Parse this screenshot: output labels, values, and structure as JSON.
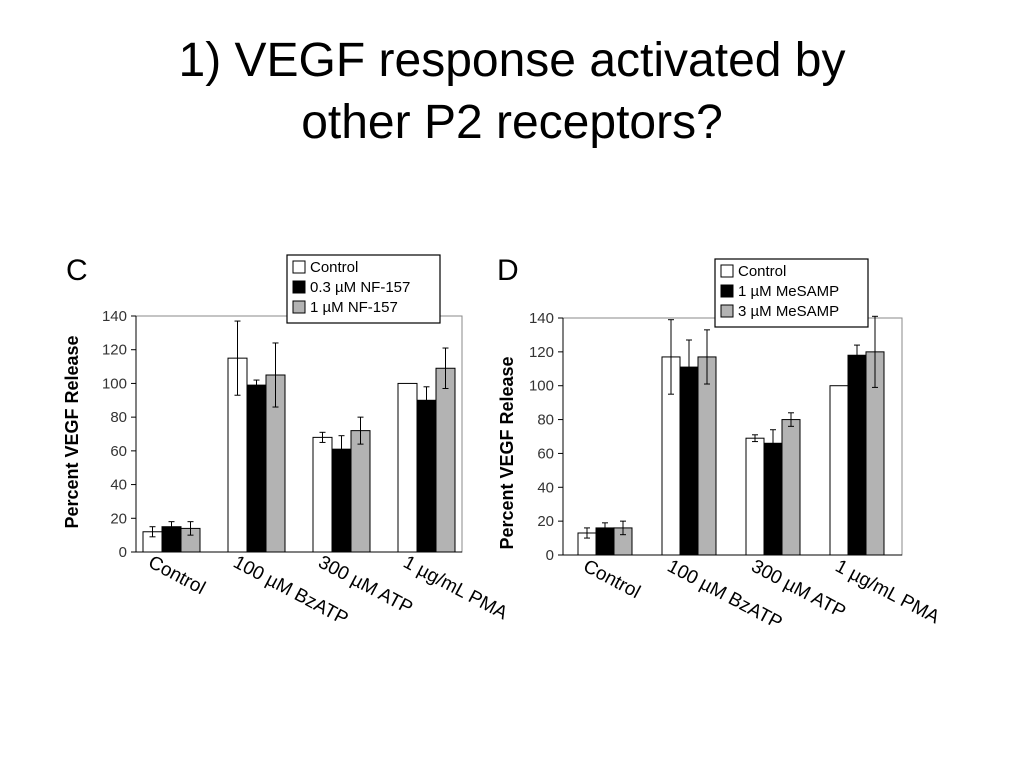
{
  "slide": {
    "title_line1": "1) VEGF response activated by",
    "title_line2": "other P2 receptors?"
  },
  "colors": {
    "control": "#ffffff",
    "dark": "#000000",
    "gray": "#b3b3b3"
  },
  "chart_data": [
    {
      "panel": "C",
      "type": "bar",
      "ylabel": "Percent VEGF Release",
      "ylim": [
        0,
        140
      ],
      "yticks": [
        0,
        20,
        40,
        60,
        80,
        100,
        120,
        140
      ],
      "categories": [
        "Control",
        "100 µM BzATP",
        "300 µM ATP",
        "1 µg/mL PMA"
      ],
      "legend_position": "top-right",
      "series": [
        {
          "name": "Control",
          "color": "#ffffff",
          "values": [
            12,
            115,
            68,
            100
          ],
          "errors": [
            3,
            22,
            3,
            0
          ]
        },
        {
          "name": "0.3 µM NF-157",
          "color": "#000000",
          "values": [
            15,
            99,
            61,
            90
          ],
          "errors": [
            3,
            3,
            8,
            8
          ]
        },
        {
          "name": "1 µM NF-157",
          "color": "#b3b3b3",
          "values": [
            14,
            105,
            72,
            109
          ],
          "errors": [
            4,
            19,
            8,
            12
          ]
        }
      ]
    },
    {
      "panel": "D",
      "type": "bar",
      "ylabel": "Percent VEGF Release",
      "ylim": [
        0,
        140
      ],
      "yticks": [
        0,
        20,
        40,
        60,
        80,
        100,
        120,
        140
      ],
      "categories": [
        "Control",
        "100 µM BzATP",
        "300 µM ATP",
        "1 µg/mL PMA"
      ],
      "legend_position": "top-right",
      "series": [
        {
          "name": "Control",
          "color": "#ffffff",
          "values": [
            13,
            117,
            69,
            100
          ],
          "errors": [
            3,
            22,
            2,
            0
          ]
        },
        {
          "name": "1 µM MeSAMP",
          "color": "#000000",
          "values": [
            16,
            111,
            66,
            118
          ],
          "errors": [
            3,
            16,
            8,
            6
          ]
        },
        {
          "name": "3 µM MeSAMP",
          "color": "#b3b3b3",
          "values": [
            16,
            117,
            80,
            120
          ],
          "errors": [
            4,
            16,
            4,
            21
          ]
        }
      ]
    }
  ]
}
